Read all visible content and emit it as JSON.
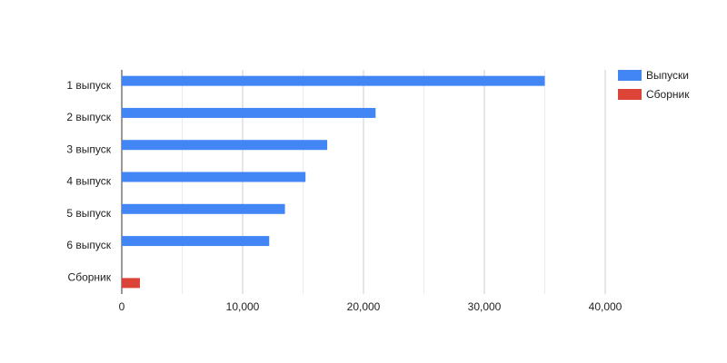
{
  "chart_data": {
    "type": "bar",
    "orientation": "horizontal",
    "categories": [
      "1 выпуск",
      "2 выпуск",
      "3 выпуск",
      "4 выпуск",
      "5 выпуск",
      "6 выпуск",
      "Сборник"
    ],
    "series": [
      {
        "name": "Выпуски",
        "color": "#4285f4",
        "values": [
          35000,
          21000,
          17000,
          15200,
          13500,
          12200,
          null
        ]
      },
      {
        "name": "Сборник",
        "color": "#db4437",
        "values": [
          null,
          null,
          null,
          null,
          null,
          null,
          1500
        ]
      }
    ],
    "xlim": [
      0,
      40000
    ],
    "xticks": [
      0,
      {
        "value": 10000,
        "label": "10,000"
      },
      {
        "value": 20000,
        "label": "20,000"
      },
      {
        "value": 30000,
        "label": "30,000"
      },
      {
        "value": 40000,
        "label": "40,000"
      }
    ],
    "x_minor_ticks": [
      5000,
      15000,
      25000,
      35000
    ],
    "grid": true,
    "legend": "right"
  }
}
